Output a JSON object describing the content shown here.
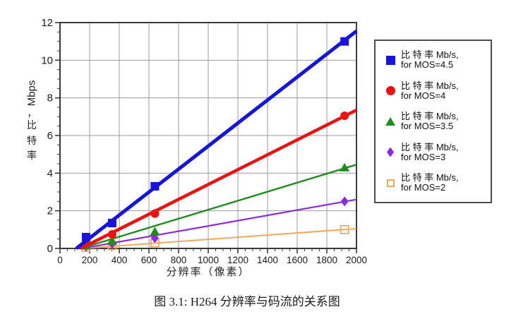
{
  "figure": {
    "caption": "图 3.1: H264 分辨率与码流的关系图"
  },
  "chart_data": {
    "type": "scatter",
    "title": "",
    "xlabel": "分辨率（像素）",
    "ylabel": "比特率，Mbps",
    "ylabel_parts": {
      "unit": "Mbps",
      "comma": "，",
      "cjk": "比特率"
    },
    "xlim": [
      0,
      2000
    ],
    "ylim": [
      0,
      12
    ],
    "xticks": [
      0,
      200,
      400,
      600,
      800,
      1000,
      1200,
      1400,
      1600,
      1800,
      2000
    ],
    "yticks": [
      0,
      2,
      4,
      6,
      8,
      10,
      12
    ],
    "x_minor_step": 50,
    "y_minor_step": 0.5,
    "grid": true,
    "legend_position": "right-outside",
    "axis_color": "#3a3a3a",
    "grid_color": "#9b9b9b",
    "tick_label_color": "#1a1a1a",
    "x": [
      176,
      352,
      640,
      1920
    ],
    "series": [
      {
        "name": "比特率 Mb/s, for MOS=4.5",
        "legend1": "比 特 率 Mb/s,",
        "legend2": "for MOS=4.5",
        "marker": "square",
        "color": "#1515dd",
        "line_width": 5,
        "values": [
          0.6,
          1.35,
          3.3,
          11.0
        ],
        "trend_line": {
          "x": [
            110,
            2000
          ],
          "y": [
            0,
            11.55
          ]
        }
      },
      {
        "name": "比特率 Mb/s, for MOS=4",
        "legend1": "比 特 率 Mb/s,",
        "legend2": "for MOS=4",
        "marker": "circle",
        "color": "#ee1111",
        "line_width": 4.5,
        "values": [
          0.3,
          0.75,
          1.85,
          7.05
        ],
        "trend_line": {
          "x": [
            140,
            2000
          ],
          "y": [
            0,
            7.35
          ]
        }
      },
      {
        "name": "比特率 Mb/s, for MOS=3.5",
        "legend1": "比 特 率 Mb/s,",
        "legend2": "for MOS=3.5",
        "marker": "triangle",
        "color": "#1f8c1f",
        "line_width": 2.4,
        "values": [
          0.15,
          0.4,
          0.9,
          4.3
        ],
        "trend_line": {
          "x": [
            140,
            2000
          ],
          "y": [
            0,
            4.45
          ]
        }
      },
      {
        "name": "比特率 Mb/s, for MOS=3",
        "legend1": "比 特 率 Mb/s,",
        "legend2": "for MOS=3",
        "marker": "diamond",
        "color": "#8a2be2",
        "line_width": 2.2,
        "values": [
          0.1,
          0.25,
          0.55,
          2.5
        ],
        "trend_line": {
          "x": [
            150,
            2000
          ],
          "y": [
            0,
            2.6
          ]
        }
      },
      {
        "name": "比特率 Mb/s, for MOS=2",
        "legend1": "比 特 率 Mb/s,",
        "legend2": "for MOS=2",
        "marker": "open-square",
        "color": "#f5a85c",
        "line_width": 2,
        "values": [
          0.05,
          0.15,
          0.3,
          1.0
        ],
        "trend_line": {
          "x": [
            150,
            2000
          ],
          "y": [
            0,
            1.05
          ]
        }
      }
    ]
  }
}
